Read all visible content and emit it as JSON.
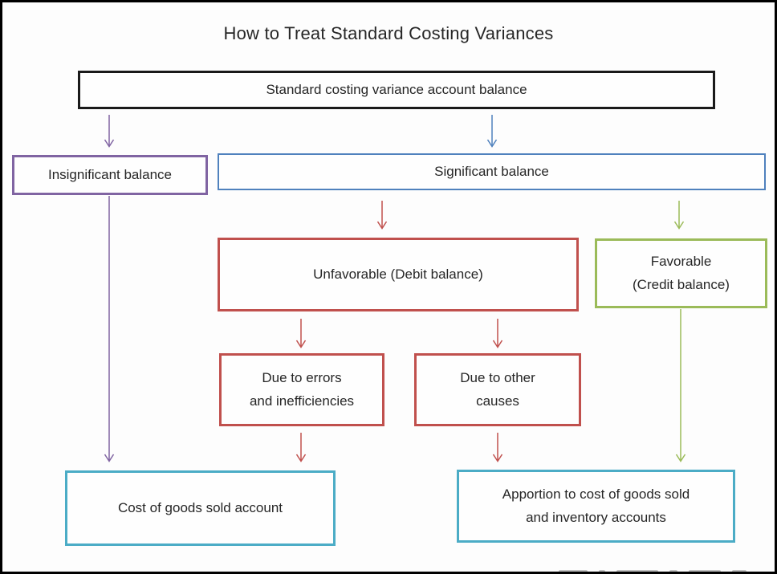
{
  "title": "How to Treat Standard Costing Variances",
  "palette": {
    "frame_black": "#1a1a1a",
    "purple": "#8064a2",
    "blue": "#4f81bd",
    "red": "#c0504d",
    "green": "#9bbb59",
    "cyan": "#4bacc6",
    "text": "#262626",
    "background": "#fdfdfd"
  },
  "nodes": {
    "root": {
      "label": "Standard costing variance account balance"
    },
    "insignificant": {
      "label": "Insignificant balance"
    },
    "significant": {
      "label": "Significant balance"
    },
    "unfavorable": {
      "label": "Unfavorable (Debit balance)"
    },
    "favorable": {
      "label": [
        "Favorable",
        "(Credit balance)"
      ]
    },
    "due_errors": {
      "label": [
        "Due to errors",
        "and inefficiencies"
      ]
    },
    "due_other": {
      "label": [
        "Due to other",
        "causes"
      ]
    },
    "cogs": {
      "label": "Cost of goods sold account"
    },
    "apportion": {
      "label": [
        "Apportion to cost of goods sold",
        "and inventory accounts"
      ]
    }
  },
  "edges": [
    {
      "from": "root",
      "to": "insignificant",
      "color": "#8064a2"
    },
    {
      "from": "root",
      "to": "significant",
      "color": "#4f81bd"
    },
    {
      "from": "significant",
      "to": "unfavorable",
      "color": "#c0504d"
    },
    {
      "from": "significant",
      "to": "favorable",
      "color": "#9bbb59"
    },
    {
      "from": "unfavorable",
      "to": "due_errors",
      "color": "#c0504d"
    },
    {
      "from": "unfavorable",
      "to": "due_other",
      "color": "#c0504d"
    },
    {
      "from": "insignificant",
      "to": "cogs",
      "color": "#8064a2"
    },
    {
      "from": "due_errors",
      "to": "cogs",
      "color": "#c0504d"
    },
    {
      "from": "due_other",
      "to": "apportion",
      "color": "#c0504d"
    },
    {
      "from": "favorable",
      "to": "apportion",
      "color": "#9bbb59"
    }
  ]
}
